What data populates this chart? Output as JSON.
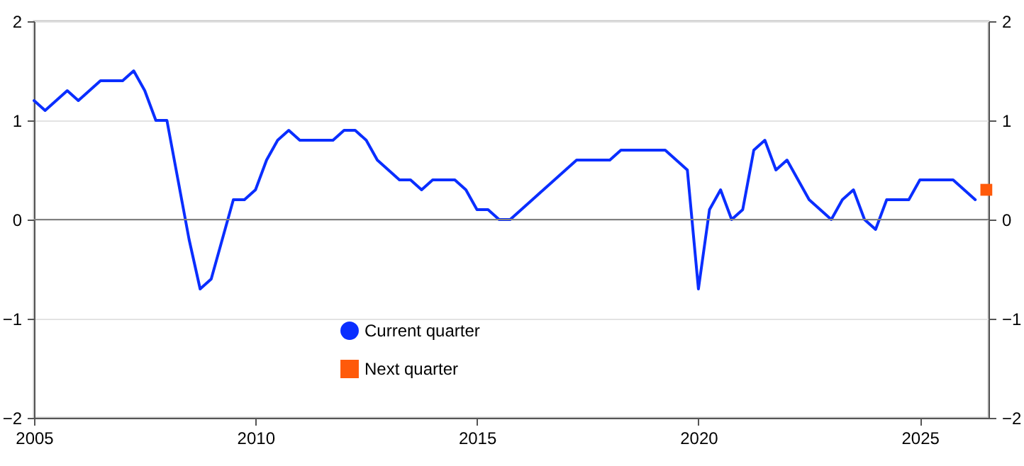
{
  "chart_data": {
    "type": "line",
    "x": [
      2005,
      2005.25,
      2005.5,
      2005.75,
      2006,
      2006.25,
      2006.5,
      2006.75,
      2007,
      2007.25,
      2007.5,
      2007.75,
      2008,
      2008.25,
      2008.5,
      2008.75,
      2009,
      2009.25,
      2009.5,
      2009.75,
      2010,
      2010.25,
      2010.5,
      2010.75,
      2011,
      2011.25,
      2011.5,
      2011.75,
      2012,
      2012.25,
      2012.5,
      2012.75,
      2013,
      2013.25,
      2013.5,
      2013.75,
      2014,
      2014.25,
      2014.5,
      2014.75,
      2015,
      2015.25,
      2015.5,
      2015.75,
      2016,
      2016.25,
      2016.5,
      2016.75,
      2017,
      2017.25,
      2017.5,
      2017.75,
      2018,
      2018.25,
      2018.5,
      2018.75,
      2019,
      2019.25,
      2019.5,
      2019.75,
      2020,
      2020.25,
      2020.5,
      2020.75,
      2021,
      2021.25,
      2021.5,
      2021.75,
      2022,
      2022.25,
      2022.5,
      2022.75,
      2023,
      2023.25,
      2023.5,
      2023.75,
      2024,
      2024.25,
      2024.5,
      2024.75,
      2025,
      2025.25,
      2025.5,
      2025.75,
      2026,
      2026.25
    ],
    "series": [
      {
        "name": "Current quarter",
        "color": "#0a2eff",
        "values": [
          1.2,
          1.1,
          1.2,
          1.3,
          1.2,
          1.3,
          1.4,
          1.4,
          1.4,
          1.5,
          1.3,
          1.0,
          1.0,
          0.4,
          -0.2,
          -0.7,
          -0.6,
          -0.2,
          0.2,
          0.2,
          0.3,
          0.6,
          0.8,
          0.9,
          0.8,
          0.8,
          0.8,
          0.8,
          0.9,
          0.9,
          0.8,
          0.6,
          0.5,
          0.4,
          0.4,
          0.3,
          0.4,
          0.4,
          0.4,
          0.3,
          0.1,
          0.1,
          0.0,
          0.0,
          0.1,
          0.2,
          0.3,
          0.4,
          0.5,
          0.6,
          0.6,
          0.6,
          0.6,
          0.7,
          0.7,
          0.7,
          0.7,
          0.7,
          0.6,
          0.5,
          -0.7,
          0.1,
          0.3,
          0.0,
          0.1,
          0.7,
          0.8,
          0.5,
          0.6,
          0.4,
          0.2,
          0.1,
          0.0,
          0.2,
          0.3,
          0.0,
          -0.1,
          0.2,
          0.2,
          0.2,
          0.4,
          0.4,
          0.4,
          0.4,
          0.3,
          0.2
        ]
      },
      {
        "name": "Next quarter",
        "color": "#ff5a0a",
        "type": "scatter",
        "marker": "square",
        "x": [
          2026.5
        ],
        "values": [
          0.3
        ]
      }
    ],
    "xlim": [
      2005,
      2026.55
    ],
    "xticks": [
      2005,
      2010,
      2015,
      2020,
      2025
    ],
    "ylim": [
      -2,
      2
    ],
    "yticks": [
      -2,
      -1,
      0,
      1,
      2
    ],
    "y2lim": [
      -2,
      2
    ],
    "y2ticks": [
      -2,
      -1,
      0,
      1,
      2
    ],
    "ref_lines": [
      {
        "axis": "y",
        "value": 0,
        "color": "#808080"
      }
    ],
    "grid": "y",
    "legend": "bottom left"
  }
}
